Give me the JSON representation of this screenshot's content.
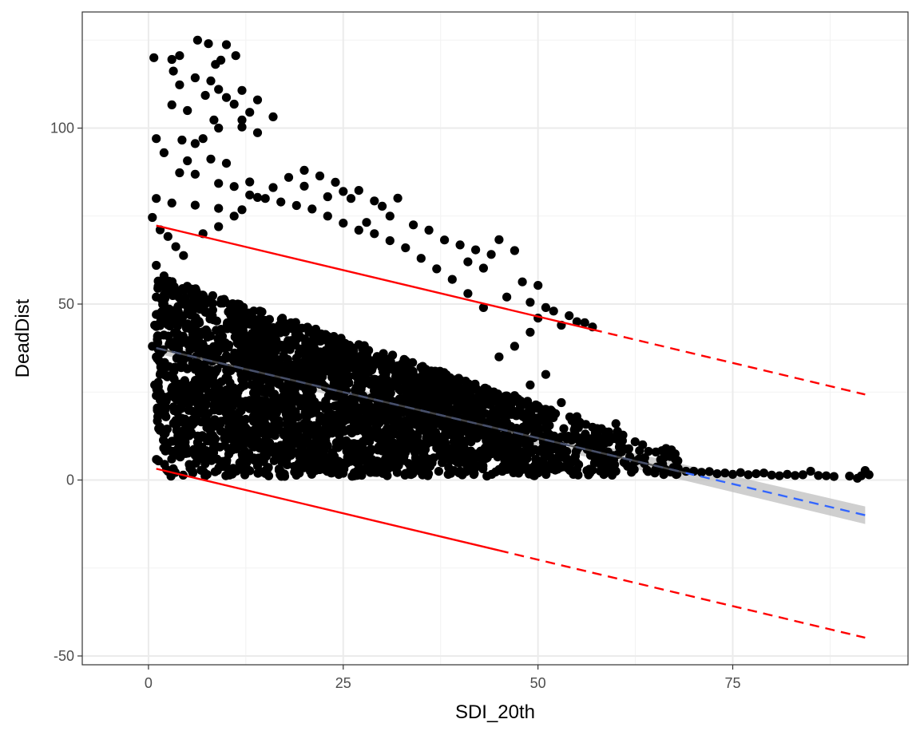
{
  "chart_data": {
    "type": "scatter",
    "title": "",
    "xlabel": "SDI_20th",
    "ylabel": "DeadDist",
    "xlim": [
      -8.5,
      97.5
    ],
    "ylim": [
      -52.5,
      133
    ],
    "x_ticks": [
      0,
      25,
      50,
      75
    ],
    "x_tick_labels": [
      "0",
      "25",
      "50",
      "75"
    ],
    "y_ticks": [
      -50,
      0,
      50,
      100
    ],
    "y_tick_labels": [
      "-50",
      "0",
      "50",
      "100"
    ],
    "grid": true,
    "legend": "none",
    "colors": {
      "points": "#000000",
      "fit_line": "#3366ff",
      "confidence_band": "#bfbfbf",
      "fit_line_observed": "#4d4d4d",
      "prediction_bounds": "#ff0000",
      "grid": "#ebebeb",
      "panel_border": "#333333"
    },
    "fit_line": {
      "style": "dashed",
      "x": [
        1,
        92
      ],
      "y": [
        37.5,
        -10
      ]
    },
    "confidence_band": {
      "x": [
        1,
        92
      ],
      "y_upper": [
        39,
        -7.5
      ],
      "y_lower": [
        36,
        -12.5
      ]
    },
    "fit_line_observed_range": {
      "style": "solid",
      "x": [
        1,
        69
      ],
      "y": [
        37.5,
        2
      ]
    },
    "prediction_bounds": [
      {
        "bound": "upper",
        "solid_x": [
          1,
          57
        ],
        "dashed_x": [
          57,
          92
        ],
        "y_at_x1": 72.3,
        "y_at_x92": 24.3
      },
      {
        "bound": "lower",
        "solid_x": [
          1,
          45
        ],
        "dashed_x": [
          45,
          92
        ],
        "y_at_x1": 3.2,
        "y_at_x92": -44.8
      }
    ],
    "scatter_points": [
      [
        6.3,
        125
      ],
      [
        7.7,
        124
      ],
      [
        10,
        123.7
      ],
      [
        3,
        119.5
      ],
      [
        0.7,
        120
      ],
      [
        4,
        120.6
      ],
      [
        8.6,
        118.1
      ],
      [
        11.2,
        120.6
      ],
      [
        9.3,
        119.3
      ],
      [
        3.2,
        116.2
      ],
      [
        8,
        113.4
      ],
      [
        6,
        114.3
      ],
      [
        4,
        112.3
      ],
      [
        9,
        111
      ],
      [
        12,
        110.7
      ],
      [
        10,
        108.7
      ],
      [
        7.3,
        109.3
      ],
      [
        14,
        108
      ],
      [
        11,
        106.8
      ],
      [
        5,
        105
      ],
      [
        3,
        106.6
      ],
      [
        13,
        104.5
      ],
      [
        12,
        102.3
      ],
      [
        16,
        103.2
      ],
      [
        8.4,
        102.3
      ],
      [
        1,
        97
      ],
      [
        4.3,
        96.6
      ],
      [
        7,
        97
      ],
      [
        6,
        95.6
      ],
      [
        9,
        100
      ],
      [
        12,
        100.3
      ],
      [
        14,
        98.7
      ],
      [
        2,
        93
      ],
      [
        5,
        90.7
      ],
      [
        8,
        91.2
      ],
      [
        10,
        90
      ],
      [
        4,
        87.3
      ],
      [
        6,
        86.9
      ],
      [
        9,
        84.3
      ],
      [
        11,
        83.4
      ],
      [
        13,
        84.7
      ],
      [
        18,
        86
      ],
      [
        20,
        88
      ],
      [
        22,
        86.4
      ],
      [
        24,
        84.6
      ],
      [
        16,
        83.1
      ],
      [
        20,
        83.5
      ],
      [
        25,
        82
      ],
      [
        27,
        82.3
      ],
      [
        29,
        79.3
      ],
      [
        1,
        80
      ],
      [
        3,
        78.7
      ],
      [
        6,
        78.1
      ],
      [
        9,
        77.2
      ],
      [
        12,
        76.8
      ],
      [
        14,
        80.3
      ],
      [
        23,
        80.5
      ],
      [
        26,
        80
      ],
      [
        32,
        80.1
      ],
      [
        30,
        77.8
      ],
      [
        31,
        75
      ],
      [
        28,
        73.2
      ],
      [
        34,
        72.5
      ],
      [
        36,
        71
      ],
      [
        38,
        68.2
      ],
      [
        40,
        66.8
      ],
      [
        42,
        65.4
      ],
      [
        44,
        64.1
      ],
      [
        45,
        68.3
      ],
      [
        47,
        65.2
      ],
      [
        41,
        62
      ],
      [
        43,
        60.2
      ],
      [
        48,
        56.3
      ],
      [
        50,
        55.3
      ],
      [
        46,
        52
      ],
      [
        49,
        50.5
      ],
      [
        52,
        48
      ],
      [
        54,
        46.7
      ],
      [
        55,
        45
      ],
      [
        56,
        44.7
      ],
      [
        57,
        43.5
      ],
      [
        0.5,
        74.6
      ],
      [
        1.5,
        71.1
      ],
      [
        2.5,
        69.2
      ],
      [
        3.5,
        66.3
      ],
      [
        4.5,
        63.8
      ],
      [
        1,
        61
      ],
      [
        2,
        58
      ],
      [
        3,
        55
      ],
      [
        1,
        52
      ],
      [
        2,
        50
      ],
      [
        1,
        47
      ],
      [
        0.8,
        44
      ],
      [
        1.2,
        41
      ],
      [
        0.5,
        38
      ],
      [
        1,
        35
      ],
      [
        2,
        32
      ],
      [
        1.5,
        30
      ],
      [
        0.8,
        27
      ],
      [
        1,
        24
      ],
      [
        2,
        21
      ],
      [
        1.2,
        18
      ],
      [
        1.5,
        15
      ],
      [
        2,
        13
      ],
      [
        3,
        11
      ],
      [
        4,
        9
      ],
      [
        6,
        7
      ],
      [
        8,
        6
      ],
      [
        10,
        5
      ],
      [
        14,
        4
      ],
      [
        20,
        3.5
      ],
      [
        30,
        3
      ],
      [
        40,
        2.5
      ],
      [
        45,
        3
      ],
      [
        50,
        2
      ],
      [
        53,
        6.5
      ],
      [
        55,
        3
      ],
      [
        57,
        2.8
      ],
      [
        59,
        8
      ],
      [
        60,
        2.5
      ],
      [
        61,
        9
      ],
      [
        62,
        2.2
      ],
      [
        63,
        6
      ],
      [
        64,
        2.8
      ],
      [
        65,
        2
      ],
      [
        66,
        4.5
      ],
      [
        67,
        2.3
      ],
      [
        68,
        3.3
      ],
      [
        69,
        2.5
      ],
      [
        70,
        2.5
      ],
      [
        71,
        2.2
      ],
      [
        72,
        2.4
      ],
      [
        73,
        1.8
      ],
      [
        74,
        2
      ],
      [
        75,
        1.6
      ],
      [
        76,
        2.1
      ],
      [
        77,
        1.5
      ],
      [
        78,
        1.8
      ],
      [
        79,
        2
      ],
      [
        80,
        1.4
      ],
      [
        81,
        1.2
      ],
      [
        82,
        1.6
      ],
      [
        83,
        1.3
      ],
      [
        84,
        1.5
      ],
      [
        85,
        2.5
      ],
      [
        86,
        1.3
      ],
      [
        87,
        1.2
      ],
      [
        88,
        1
      ],
      [
        90,
        1.1
      ],
      [
        91,
        0.5
      ],
      [
        91.5,
        1.2
      ],
      [
        92,
        2.7
      ],
      [
        92.5,
        1.5
      ],
      [
        44,
        17
      ],
      [
        46,
        14
      ],
      [
        48,
        12
      ],
      [
        50,
        21
      ],
      [
        52,
        19
      ],
      [
        54,
        12
      ],
      [
        56,
        10.5
      ],
      [
        58,
        10
      ],
      [
        60,
        16
      ],
      [
        47,
        24
      ],
      [
        49,
        27
      ],
      [
        51,
        30
      ],
      [
        53,
        22
      ],
      [
        55,
        18
      ],
      [
        57,
        15
      ],
      [
        59,
        13
      ],
      [
        45,
        35
      ],
      [
        47,
        38
      ],
      [
        49,
        42
      ],
      [
        50,
        46
      ],
      [
        51,
        49
      ],
      [
        53,
        44
      ],
      [
        43,
        49
      ],
      [
        41,
        53
      ],
      [
        39,
        57
      ],
      [
        37,
        60
      ],
      [
        35,
        63
      ],
      [
        33,
        66
      ],
      [
        31,
        68
      ],
      [
        29,
        70
      ],
      [
        27,
        71
      ],
      [
        25,
        73
      ],
      [
        23,
        75
      ],
      [
        21,
        77
      ],
      [
        19,
        78
      ],
      [
        17,
        79
      ],
      [
        15,
        80
      ],
      [
        13,
        81
      ],
      [
        11,
        75
      ],
      [
        9,
        72
      ],
      [
        7,
        70
      ]
    ]
  }
}
